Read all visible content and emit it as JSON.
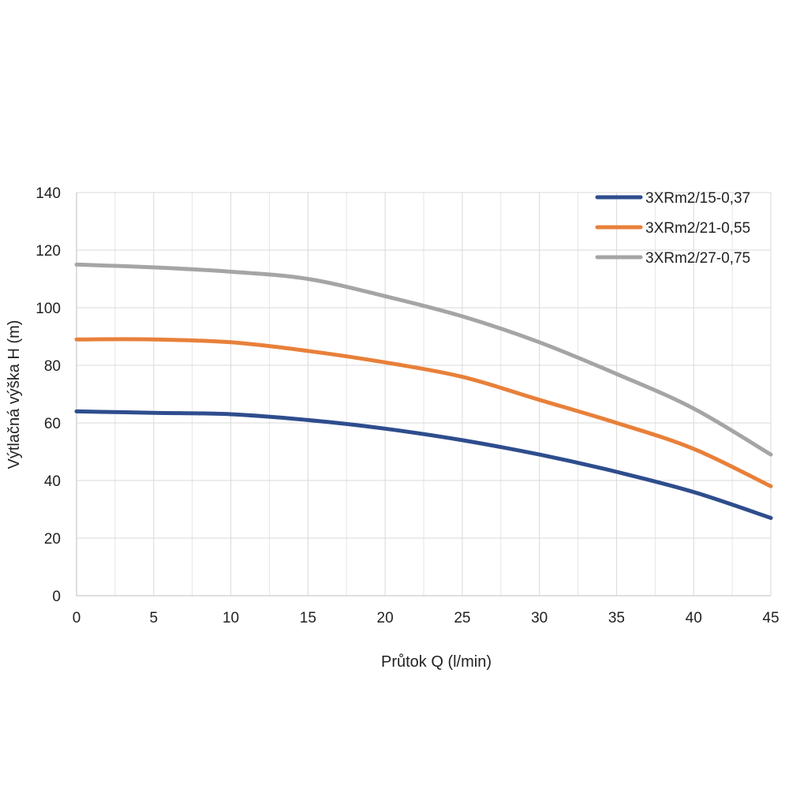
{
  "chart_data": {
    "type": "line",
    "title": "",
    "xlabel": "Průtok Q (l/min)",
    "ylabel": "Výtlačná výška H (m)",
    "xlim": [
      0,
      45
    ],
    "ylim": [
      0,
      140
    ],
    "xticks": [
      0,
      5,
      10,
      15,
      20,
      25,
      30,
      35,
      40,
      45
    ],
    "yticks": [
      0,
      20,
      40,
      60,
      80,
      100,
      120,
      140
    ],
    "x_minor_grid_step": 2.5,
    "grid": true,
    "legend_position": "top-right",
    "series": [
      {
        "name": "3XRm2/15-0,37",
        "color": "#2e4d8d",
        "x": [
          0,
          5,
          10,
          15,
          20,
          25,
          30,
          35,
          40,
          45
        ],
        "y": [
          64,
          63.5,
          63,
          61,
          58,
          54,
          49,
          43,
          36,
          27
        ]
      },
      {
        "name": "3XRm2/21-0,55",
        "color": "#e8803a",
        "x": [
          0,
          5,
          10,
          15,
          20,
          25,
          30,
          35,
          40,
          45
        ],
        "y": [
          89,
          89,
          88,
          85,
          81,
          76,
          68,
          60,
          51,
          38
        ]
      },
      {
        "name": "3XRm2/27-0,75",
        "color": "#a5a5a5",
        "x": [
          0,
          5,
          10,
          15,
          20,
          25,
          30,
          35,
          40,
          45
        ],
        "y": [
          115,
          114,
          112.5,
          110,
          104,
          97,
          88,
          77,
          65,
          49
        ]
      }
    ]
  }
}
